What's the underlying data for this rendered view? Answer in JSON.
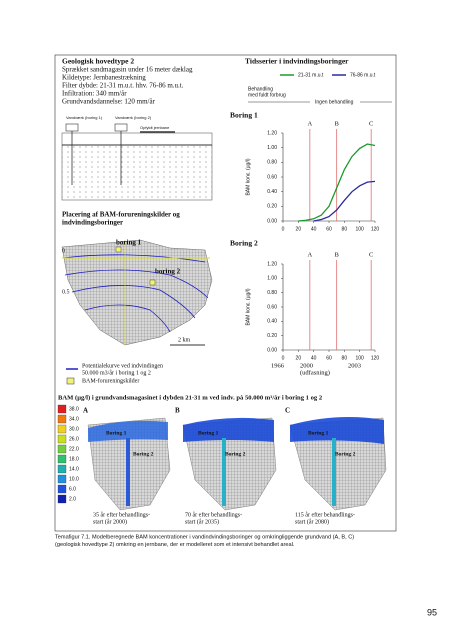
{
  "geology": {
    "title": "Geologisk hovedtype 2",
    "lines": [
      "Sprækket sandmagasin under 16 meter dæklag",
      "Kildetype: Jernbanestrækning",
      "Filter dybde: 21-31 m.u.t. hhv. 76-86 m.u.t.",
      "Infiltration: 340 mm/år",
      "Grundvandsdannelse: 120 mm/år"
    ]
  },
  "section_labels": [
    "Vandværk (boring 1)",
    "Vandværk (boring 2)",
    "Opfyldt jernbane"
  ],
  "map": {
    "title": [
      "Placering af BAM-forureningskilder og",
      "indvindingsboringer"
    ],
    "wells": [
      "boring 1",
      "boring 2"
    ],
    "contours": [
      "0",
      "0.5"
    ],
    "scale": "2 km"
  },
  "legend": {
    "contour": [
      "Potentialekurve ved indvindingen",
      "50.000 m3/år i boring 1 og 2"
    ],
    "source": "BAM-forureningskilder"
  },
  "timeseries": {
    "title": "Tidsserier i indvindingsboringer",
    "treatment": [
      "Behandling",
      "med fuldt forbrug"
    ],
    "no_treatment": "Ingen behandling",
    "timeline": [
      "1966",
      "2000",
      "2003",
      "(udfasning)"
    ],
    "charts": [
      {
        "type": "line",
        "title": "Boring 1",
        "ylabel": "BAM konc. (µg/l)",
        "xlim": [
          0,
          120
        ],
        "ylim": [
          0,
          1.2
        ],
        "xticks": [
          0,
          20,
          40,
          60,
          80,
          100,
          120
        ],
        "yticks": [
          {
            "value": 0,
            "label": "0.00"
          },
          {
            "value": 0.2,
            "label": "0.20"
          },
          {
            "value": 0.4,
            "label": "0.40"
          },
          {
            "value": 0.6,
            "label": "0.60"
          },
          {
            "value": 0.8,
            "label": "0.80"
          },
          {
            "value": 1.0,
            "label": "1.00"
          },
          {
            "value": 1.2,
            "label": "1.20"
          }
        ],
        "markers": {
          "labels": [
            "A",
            "B",
            "C"
          ],
          "x": [
            35,
            70,
            115
          ],
          "color": "#e07070"
        },
        "series": [
          {
            "name": "21-31 m.u.t",
            "color": "#1a9a2a",
            "x": [
              20,
              30,
              40,
              50,
              60,
              70,
              80,
              90,
              100,
              110,
              120
            ],
            "values": [
              0,
              0.01,
              0.03,
              0.08,
              0.2,
              0.45,
              0.7,
              0.88,
              0.99,
              1.05,
              1.03
            ]
          },
          {
            "name": "76-86 m.u.t",
            "color": "#2a2aa0",
            "x": [
              40,
              50,
              60,
              70,
              80,
              90,
              100,
              110,
              120
            ],
            "values": [
              0,
              0.02,
              0.06,
              0.15,
              0.28,
              0.4,
              0.48,
              0.53,
              0.54
            ]
          }
        ]
      },
      {
        "type": "line",
        "title": "Boring 2",
        "ylabel": "BAM konc. (µg/l)",
        "xlim": [
          0,
          120
        ],
        "ylim": [
          0,
          1.2
        ],
        "xticks": [
          0,
          20,
          40,
          60,
          80,
          100,
          120
        ],
        "yticks": [
          {
            "value": 0,
            "label": "0.00"
          },
          {
            "value": 0.2,
            "label": "0.20"
          },
          {
            "value": 0.4,
            "label": "0.40"
          },
          {
            "value": 0.6,
            "label": "0.60"
          },
          {
            "value": 0.8,
            "label": "0.80"
          },
          {
            "value": 1.0,
            "label": "1.00"
          },
          {
            "value": 1.2,
            "label": "1.20"
          }
        ],
        "markers": {
          "labels": [
            "A",
            "B",
            "C"
          ],
          "x": [
            35,
            70,
            115
          ],
          "color": "#e07070"
        },
        "series": []
      }
    ]
  },
  "bam": {
    "title": "BAM (µg/l) i grundvandsmagasinet i dybden 21-31 m ved indv. på 50.000 m³/år i boring 1 og 2",
    "colorbar": {
      "ticks": [
        {
          "value": 38,
          "label": "38.0"
        },
        {
          "value": 34,
          "label": "34.0"
        },
        {
          "value": 30,
          "label": "30.0"
        },
        {
          "value": 26,
          "label": "26.0"
        },
        {
          "value": 22,
          "label": "22.0"
        },
        {
          "value": 18,
          "label": "18.0"
        },
        {
          "value": 14,
          "label": "14.0"
        },
        {
          "value": 10,
          "label": "10.0"
        },
        {
          "value": 6,
          "label": "6.0"
        },
        {
          "value": 2,
          "label": "2.0"
        }
      ],
      "colors": [
        "#e02020",
        "#f07a10",
        "#f0d020",
        "#c8e020",
        "#70d040",
        "#30c070",
        "#20b0b0",
        "#2090e0",
        "#2050e0",
        "#1020b0"
      ]
    },
    "panels": [
      {
        "letter": "A",
        "wells": [
          "Boring 1",
          "Boring 2"
        ],
        "caption": [
          "35 år efter behandlings-",
          "start (år 2000)"
        ]
      },
      {
        "letter": "B",
        "wells": [
          "Boring 1",
          "Boring 2"
        ],
        "caption": [
          "70 år efter behandlings-",
          "start (år 2035)"
        ]
      },
      {
        "letter": "C",
        "wells": [
          "Boring 1",
          "Boring 2"
        ],
        "caption": [
          "115 år efter behandlings-",
          "start (år 2080)"
        ]
      }
    ]
  },
  "caption": [
    "Temafigur 7.1. Modelberegnede BAM koncentrationer i vandindvindingsboringer og omkringliggende grundvand (A, B, C)",
    "(geologisk hovedtype 2) omkring en jernbane, der er modelleret som et intensivt behandlet areal."
  ],
  "page_number": "95"
}
